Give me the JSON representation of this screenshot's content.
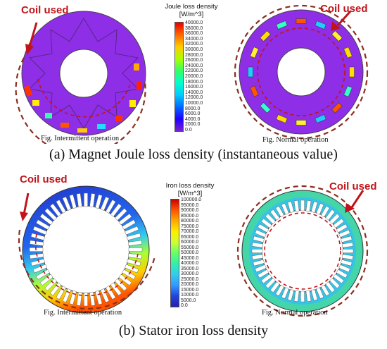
{
  "top": {
    "coil_label_left": "Coil used",
    "coil_label_right": "Coil used",
    "fig_left": "Fig. Intermittent operation",
    "fig_right": "Fig. Normal operation",
    "caption": "(a) Magnet Joule loss density (instantaneous value)",
    "legend": {
      "title": "Joule loss density",
      "unit": "[W/m^3]",
      "ticks": [
        "40000.0",
        "38000.0",
        "36000.0",
        "34000.0",
        "32000.0",
        "30000.0",
        "28000.0",
        "26000.0",
        "24000.0",
        "22000.0",
        "20000.0",
        "18000.0",
        "16000.0",
        "14000.0",
        "12000.0",
        "10000.0",
        "8000.0",
        "6000.0",
        "4000.0",
        "2000.0",
        "0.0"
      ]
    }
  },
  "bottom": {
    "coil_label_left": "Coil used",
    "coil_label_right": "Coil used",
    "fig_left": "Fig. Intermittent operation",
    "fig_right": "Fig. Normal operation",
    "caption": "(b) Stator iron loss density",
    "legend": {
      "title": "Iron loss density",
      "unit": "[W/m^3]",
      "ticks": [
        "100000.0",
        "95000.0",
        "90000.0",
        "85000.0",
        "80000.0",
        "75000.0",
        "70000.0",
        "65000.0",
        "60000.0",
        "55000.0",
        "50000.0",
        "45000.0",
        "40000.0",
        "35000.0",
        "30000.0",
        "25000.0",
        "20000.0",
        "15000.0",
        "10000.0",
        "5000.0",
        "0.0"
      ]
    }
  },
  "colors": {
    "label_red": "#c0141a",
    "rotor_purple": "#8a2be2",
    "dashed_ring": "#8b2e1f",
    "stator_blue": "#2233cc",
    "stator_cyan": "#35c4e6"
  }
}
